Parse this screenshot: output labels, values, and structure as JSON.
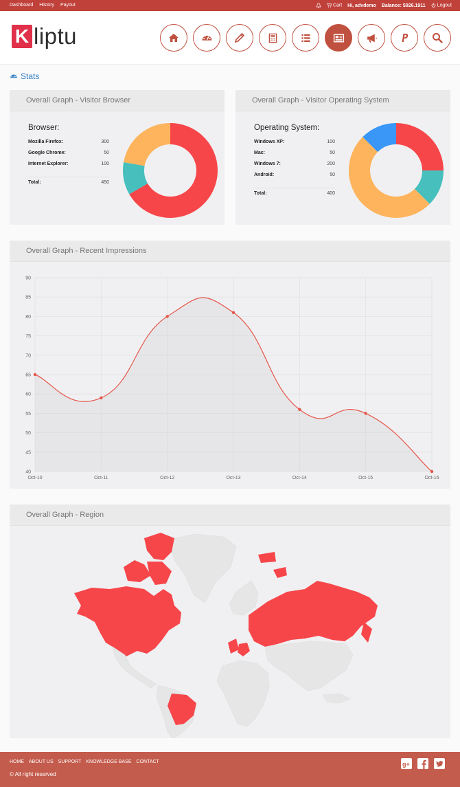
{
  "topbar": {
    "links": [
      "Dashboard",
      "History",
      "Payout"
    ],
    "cart": "Cart",
    "greeting": "Hi, advdemo",
    "balance": "Balance: $926.1911",
    "logout": "Logout"
  },
  "logo": {
    "initial": "K",
    "rest": "liptu"
  },
  "nav": {
    "icons": [
      "home-icon",
      "dashboard-gauge-icon",
      "pencil-icon",
      "calculator-icon",
      "list-icon",
      "newspaper-icon",
      "megaphone-icon",
      "paypal-icon",
      "search-icon"
    ],
    "active_index": 5
  },
  "stats": {
    "title": "Stats"
  },
  "browser_panel": {
    "title": "Overall Graph - Visitor Browser",
    "heading": "Browser:",
    "rows": [
      {
        "label": "Mozilla Firefox:",
        "value": "300"
      },
      {
        "label": "Google Chrome:",
        "value": "50"
      },
      {
        "label": "Internet Explorer:",
        "value": "100"
      }
    ],
    "total_label": "Total:",
    "total_value": "450"
  },
  "os_panel": {
    "title": "Overall Graph - Visitor Operating System",
    "heading": "Operating System:",
    "rows": [
      {
        "label": "Windows XP:",
        "value": "100"
      },
      {
        "label": "Mac:",
        "value": "50"
      },
      {
        "label": "Windows 7:",
        "value": "200"
      },
      {
        "label": "Android:",
        "value": "50"
      }
    ],
    "total_label": "Total:",
    "total_value": "400"
  },
  "impressions_panel": {
    "title": "Overall Graph - Recent Impressions"
  },
  "region_panel": {
    "title": "Overall Graph - Region"
  },
  "colors": {
    "red": "#f7464a",
    "teal": "#46bfbd",
    "orange": "#fdb45c",
    "blue": "#3a96f7",
    "brand": "#c0403a",
    "footer": "#c45c4d",
    "nav_ring": "#c0503f"
  },
  "chart_data": [
    {
      "type": "pie",
      "labels": [
        "Mozilla Firefox",
        "Google Chrome",
        "Internet Explorer"
      ],
      "values": [
        300,
        50,
        100
      ],
      "colors": [
        "#f7464a",
        "#46bfbd",
        "#fdb45c"
      ]
    },
    {
      "type": "pie",
      "labels": [
        "Windows XP",
        "Mac",
        "Windows 7",
        "Android"
      ],
      "values": [
        100,
        50,
        200,
        50
      ],
      "colors": [
        "#f7464a",
        "#46bfbd",
        "#fdb45c",
        "#3a96f7"
      ]
    },
    {
      "type": "line",
      "categories": [
        "Oct-10",
        "Oct-11",
        "Oct-12",
        "Oct-13",
        "Oct-14",
        "Oct-15",
        "Oct-16"
      ],
      "values": [
        65,
        59,
        80,
        81,
        56,
        55,
        40
      ],
      "ylim": [
        40,
        90
      ],
      "yticks": [
        40,
        45,
        50,
        55,
        60,
        65,
        70,
        75,
        80,
        85,
        90
      ],
      "grid": true,
      "color": "#e5564a"
    }
  ],
  "footer": {
    "links": [
      "HOME",
      "ABOUT US",
      "SUPPORT",
      "KNOWLEDGE BASE",
      "CONTACT"
    ],
    "copyright": "© All right reserved",
    "social": [
      "google-plus-icon",
      "facebook-icon",
      "twitter-icon"
    ]
  }
}
